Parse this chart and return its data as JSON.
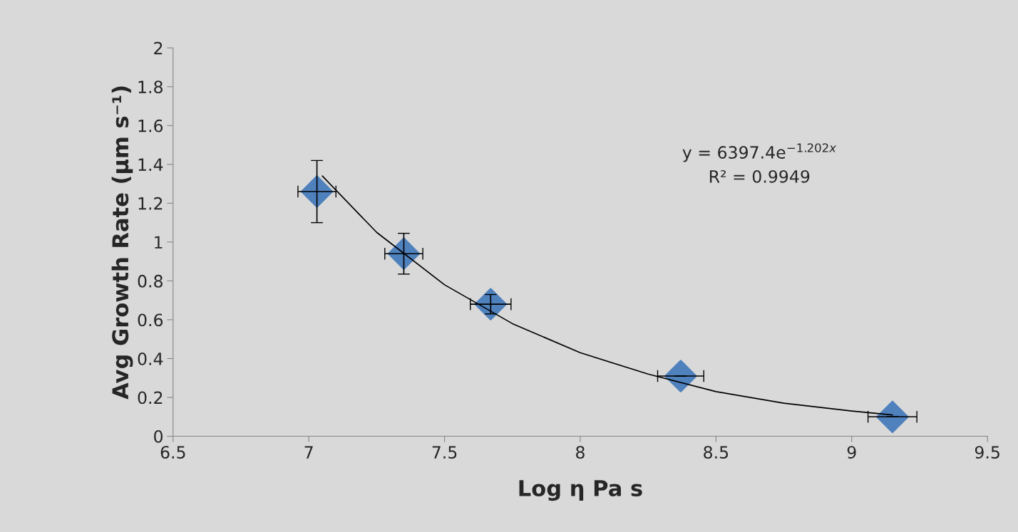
{
  "chart_data": {
    "type": "scatter",
    "xlabel": "Log η Pa s",
    "ylabel": "Avg Growth Rate (µm s⁻¹)",
    "xlim": [
      6.5,
      9.5
    ],
    "xticks": [
      6.5,
      7,
      7.5,
      8,
      8.5,
      9,
      9.5
    ],
    "ylim": [
      0,
      2
    ],
    "yticks": [
      0,
      0.2,
      0.4,
      0.6,
      0.8,
      1,
      1.2,
      1.4,
      1.6,
      1.8,
      2
    ],
    "grid": false,
    "legend": false,
    "series": [
      {
        "color": "#4f81bd",
        "marker": "diamond",
        "x": [
          7.03,
          7.35,
          7.67,
          8.37,
          9.15
        ],
        "values": [
          1.26,
          0.94,
          0.68,
          0.31,
          0.1
        ],
        "errors": [
          0.16,
          0.105,
          0.05,
          null,
          null
        ],
        "xerrors": [
          0.07,
          0.07,
          0.075,
          0.085,
          0.09
        ]
      },
      {
        "type": "line",
        "color": "#000000",
        "marker": "none",
        "line_style": "solid",
        "x": [
          7.05,
          7.25,
          7.5,
          7.75,
          8,
          8.25,
          8.5,
          8.75,
          9,
          9.15
        ],
        "values": [
          1.34,
          1.05,
          0.78,
          0.58,
          0.43,
          0.32,
          0.23,
          0.17,
          0.13,
          0.11
        ]
      }
    ],
    "annotations": [
      "y = 6397.4e$^{−1.202x}$",
      "R² = 0.9949"
    ]
  }
}
